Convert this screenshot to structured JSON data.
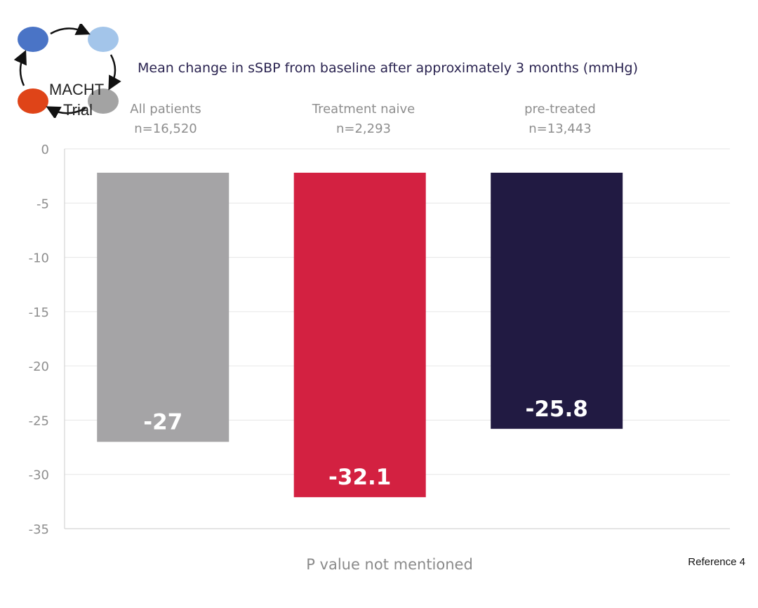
{
  "logo": {
    "line1": "MACHT",
    "line2": "Trial",
    "colors": [
      "#4a74c6",
      "#a3c5ea",
      "#df4418",
      "#a3a3a3"
    ]
  },
  "header": {
    "title": "Mean change in sSBP from baseline after approximately 3 months (mmHg)"
  },
  "groups": [
    {
      "name": "All patients",
      "n": "n=16,520"
    },
    {
      "name": "Treatment naive",
      "n": "n=2,293"
    },
    {
      "name": "pre-treated",
      "n": "n=13,443"
    }
  ],
  "chart_data": {
    "type": "bar",
    "title": "Mean change in sSBP from baseline after approximately 3 months (mmHg)",
    "categories": [
      "All patients",
      "Treatment naive",
      "pre-treated"
    ],
    "values": [
      -27,
      -32.1,
      -25.8
    ],
    "value_labels": [
      "-27",
      "-32.1",
      "-25.8"
    ],
    "colors": [
      "#a5a4a6",
      "#d32141",
      "#211a42"
    ],
    "ylim": [
      -35,
      0
    ],
    "yticks": [
      0,
      -5,
      -10,
      -15,
      -20,
      -25,
      -30,
      -35
    ],
    "grid": true,
    "xlabel": "",
    "ylabel": ""
  },
  "footer": {
    "note": "P value not mentioned",
    "reference": "Reference 4"
  }
}
